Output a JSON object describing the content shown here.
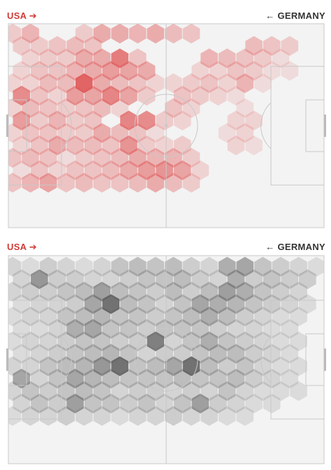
{
  "panels": [
    {
      "id": "usa-heatmap",
      "left_label": "USA",
      "left_arrow": "➔",
      "right_label": "GERMANY",
      "right_arrow": "←",
      "left_label_color": "#d03b36",
      "hex_base_color": "#e05555",
      "field_color": "#f3f3f3",
      "line_color": "#c8c8c8"
    },
    {
      "id": "germany-heatmap",
      "left_label": "USA",
      "left_arrow": "➔",
      "right_label": "GERMANY",
      "right_arrow": "←",
      "left_label_color": "#d03b36",
      "hex_base_color": "#5a5a5a",
      "field_color": "#f3f3f3",
      "line_color": "#c8c8c8"
    }
  ],
  "chart_data": [
    {
      "type": "heatmap",
      "grid": "hexagonal",
      "attacking_direction": "left-to-right",
      "cells": [
        [
          0.25,
          0.4,
          0,
          0,
          0.25,
          0.45,
          0.45,
          0.4,
          0.45,
          0.35,
          0.3,
          0,
          0,
          0,
          0,
          0,
          0,
          0,
          0,
          0,
          0,
          0,
          0,
          0,
          0,
          0,
          0,
          0,
          0,
          0,
          0,
          0,
          0,
          0,
          0,
          0,
          0,
          0,
          0,
          0
        ],
        [
          0.25,
          0.25,
          0.3,
          0.35,
          0.3,
          0,
          0,
          0,
          0,
          0,
          0,
          0,
          0,
          0.35,
          0.3,
          0.25,
          0,
          0,
          0,
          0,
          0.15,
          0,
          0,
          0,
          0,
          0,
          0,
          0,
          0,
          0,
          0,
          0,
          0,
          0,
          0,
          0,
          0,
          0,
          0,
          0
        ],
        [
          0,
          0.2,
          0.25,
          0.25,
          0.45,
          0.45,
          0.75,
          0.3,
          0,
          0,
          0,
          0.4,
          0.35,
          0.3,
          0.25,
          0.15,
          0,
          0,
          0,
          0,
          0,
          0,
          0,
          0,
          0,
          0,
          0,
          0,
          0,
          0,
          0,
          0,
          0,
          0,
          0,
          0,
          0,
          0,
          0,
          0
        ],
        [
          0.2,
          0.3,
          0.3,
          0.4,
          0.45,
          0.55,
          0.5,
          0.45,
          0,
          0,
          0.2,
          0.2,
          0.3,
          0.25,
          0.15,
          0.15,
          0,
          0,
          0,
          0,
          0,
          0,
          0,
          0,
          0,
          0,
          0,
          0,
          0,
          0,
          0,
          0,
          0,
          0,
          0,
          0,
          0,
          0,
          0,
          0
        ],
        [
          0.2,
          0.2,
          0.35,
          0.35,
          0.9,
          0.45,
          0.35,
          0.3,
          0.2,
          0.2,
          0.25,
          0.3,
          0.2,
          0.4,
          0.15,
          0,
          0,
          0,
          0,
          0,
          0,
          0,
          0,
          0,
          0,
          0,
          0,
          0,
          0,
          0,
          0,
          0,
          0,
          0,
          0,
          0,
          0,
          0,
          0,
          0
        ],
        [
          0.65,
          0.3,
          0.2,
          0.55,
          0.5,
          0.7,
          0.5,
          0.25,
          0,
          0.3,
          0.25,
          0.2,
          0.15,
          0,
          0,
          0,
          0,
          0,
          0,
          0,
          0,
          0,
          0,
          0,
          0,
          0,
          0,
          0,
          0,
          0,
          0,
          0,
          0,
          0,
          0,
          0,
          0,
          0,
          0,
          0
        ],
        [
          0.2,
          0.35,
          0.3,
          0.25,
          0.3,
          0.35,
          0.2,
          0,
          0,
          0.3,
          0.2,
          0,
          0,
          0.15,
          0,
          0,
          0,
          0,
          0,
          0,
          0,
          0,
          0,
          0,
          0,
          0,
          0,
          0,
          0,
          0,
          0,
          0,
          0,
          0,
          0,
          0,
          0,
          0,
          0,
          0
        ],
        [
          0.55,
          0.25,
          0.4,
          0.25,
          0.3,
          0,
          0.7,
          0.65,
          0.25,
          0.2,
          0,
          0,
          0.2,
          0.2,
          0,
          0,
          0,
          0,
          0,
          0,
          0,
          0,
          0,
          0,
          0,
          0,
          0,
          0,
          0,
          0,
          0,
          0,
          0,
          0,
          0,
          0,
          0,
          0,
          0,
          0
        ],
        [
          0.2,
          0.3,
          0.3,
          0.25,
          0.25,
          0.45,
          0.35,
          0.3,
          0.15,
          0,
          0,
          0,
          0.15,
          0.2,
          0,
          0,
          0,
          0,
          0,
          0,
          0,
          0,
          0,
          0,
          0,
          0,
          0,
          0,
          0,
          0,
          0,
          0,
          0,
          0,
          0,
          0,
          0,
          0,
          0,
          0
        ],
        [
          0.2,
          0.3,
          0.45,
          0.35,
          0.35,
          0.3,
          0.6,
          0.25,
          0.2,
          0.25,
          0,
          0,
          0.2,
          0.15,
          0,
          0,
          0,
          0,
          0,
          0,
          0,
          0,
          0,
          0,
          0,
          0,
          0,
          0,
          0,
          0,
          0,
          0,
          0,
          0,
          0,
          0,
          0,
          0,
          0,
          0
        ],
        [
          0.3,
          0.35,
          0.3,
          0.15,
          0.25,
          0.3,
          0.35,
          0.45,
          0.4,
          0.4,
          0.25,
          0,
          0,
          0,
          0,
          0,
          0,
          0,
          0,
          0,
          0,
          0,
          0,
          0,
          0,
          0,
          0,
          0,
          0,
          0,
          0,
          0,
          0,
          0,
          0,
          0,
          0,
          0,
          0,
          0
        ],
        [
          0.15,
          0.3,
          0.2,
          0.3,
          0.3,
          0.35,
          0.45,
          0.55,
          0.6,
          0.5,
          0.2,
          0,
          0,
          0,
          0,
          0,
          0,
          0,
          0,
          0,
          0,
          0,
          0,
          0,
          0,
          0,
          0,
          0,
          0,
          0,
          0,
          0,
          0,
          0,
          0,
          0,
          0,
          0,
          0,
          0
        ],
        [
          0.3,
          0.4,
          0.5,
          0.3,
          0.35,
          0.3,
          0.3,
          0.35,
          0.45,
          0.35,
          0.25,
          0,
          0,
          0,
          0,
          0,
          0,
          0,
          0,
          0,
          0,
          0,
          0,
          0,
          0,
          0,
          0,
          0,
          0,
          0,
          0,
          0,
          0,
          0,
          0,
          0,
          0,
          0,
          0,
          0
        ]
      ]
    },
    {
      "type": "heatmap",
      "grid": "hexagonal",
      "attacking_direction": "right-to-left",
      "cells": [
        [
          0.2,
          0.15,
          0.25,
          0.2,
          0.15,
          0.2,
          0.3,
          0.35,
          0.3,
          0.35,
          0.25,
          0.2,
          0.45,
          0.5,
          0.3,
          0.25,
          0.2,
          0.15,
          0.2,
          0,
          0,
          0,
          0,
          0,
          0,
          0,
          0,
          0,
          0,
          0,
          0,
          0,
          0,
          0,
          0,
          0,
          0,
          0,
          0,
          0
        ],
        [
          0.2,
          0.6,
          0.25,
          0.25,
          0.2,
          0.2,
          0.25,
          0.3,
          0.3,
          0.35,
          0.25,
          0.2,
          0.45,
          0.25,
          0.3,
          0.25,
          0.25,
          0,
          0,
          0,
          0,
          0,
          0,
          0,
          0,
          0,
          0,
          0,
          0,
          0,
          0,
          0,
          0,
          0,
          0,
          0,
          0,
          0,
          0,
          0
        ],
        [
          0.2,
          0.25,
          0.25,
          0.3,
          0.35,
          0.55,
          0.35,
          0.3,
          0.25,
          0.35,
          0.25,
          0.35,
          0.55,
          0.45,
          0.3,
          0.25,
          0.2,
          0,
          0,
          0,
          0,
          0,
          0,
          0,
          0,
          0,
          0,
          0,
          0,
          0,
          0,
          0,
          0,
          0,
          0,
          0,
          0,
          0,
          0,
          0
        ],
        [
          0.15,
          0.2,
          0.2,
          0.25,
          0.5,
          0.85,
          0.35,
          0.3,
          0.2,
          0.3,
          0.5,
          0.45,
          0.4,
          0.3,
          0.25,
          0.2,
          0.15,
          0,
          0,
          0,
          0,
          0,
          0,
          0,
          0,
          0,
          0,
          0,
          0,
          0,
          0,
          0,
          0,
          0,
          0,
          0,
          0,
          0,
          0,
          0
        ],
        [
          0.15,
          0.2,
          0.2,
          0.3,
          0.35,
          0.4,
          0.3,
          0.3,
          0.25,
          0.3,
          0.35,
          0.45,
          0.35,
          0.25,
          0.2,
          0.15,
          0.15,
          0,
          0,
          0,
          0,
          0,
          0,
          0,
          0,
          0,
          0,
          0,
          0,
          0,
          0,
          0,
          0,
          0,
          0,
          0,
          0,
          0,
          0,
          0
        ],
        [
          0.15,
          0.15,
          0.2,
          0.45,
          0.5,
          0.3,
          0.3,
          0.25,
          0.3,
          0.3,
          0.3,
          0.25,
          0.2,
          0.2,
          0.15,
          0.15,
          0,
          0,
          0,
          0,
          0,
          0,
          0,
          0,
          0,
          0,
          0,
          0,
          0,
          0,
          0,
          0,
          0,
          0,
          0,
          0,
          0,
          0,
          0,
          0
        ],
        [
          0.15,
          0.2,
          0.2,
          0.25,
          0.3,
          0.3,
          0.25,
          0.25,
          0.75,
          0.2,
          0.3,
          0.45,
          0.3,
          0.25,
          0.2,
          0.15,
          0.15,
          0,
          0,
          0,
          0,
          0,
          0,
          0,
          0,
          0,
          0,
          0,
          0,
          0,
          0,
          0,
          0,
          0,
          0,
          0,
          0,
          0,
          0,
          0
        ],
        [
          0.15,
          0.2,
          0.25,
          0.3,
          0.35,
          0.4,
          0.3,
          0.2,
          0.25,
          0.25,
          0.3,
          0.35,
          0.35,
          0.25,
          0.2,
          0.15,
          0,
          0,
          0,
          0,
          0,
          0,
          0,
          0,
          0,
          0,
          0,
          0,
          0,
          0,
          0,
          0,
          0,
          0,
          0,
          0,
          0,
          0,
          0,
          0
        ],
        [
          0.2,
          0.2,
          0.3,
          0.35,
          0.4,
          0.6,
          0.85,
          0.3,
          0.35,
          0.5,
          0.85,
          0.35,
          0.25,
          0.3,
          0.2,
          0.15,
          0.15,
          0,
          0,
          0,
          0,
          0,
          0,
          0,
          0,
          0,
          0,
          0,
          0,
          0,
          0,
          0,
          0,
          0,
          0,
          0,
          0,
          0,
          0,
          0
        ],
        [
          0.5,
          0.2,
          0.3,
          0.5,
          0.4,
          0.35,
          0.3,
          0.3,
          0.3,
          0.35,
          0.3,
          0.3,
          0.35,
          0.25,
          0.2,
          0.15,
          0,
          0,
          0,
          0,
          0,
          0,
          0,
          0,
          0,
          0,
          0,
          0,
          0,
          0,
          0,
          0,
          0,
          0,
          0,
          0,
          0,
          0,
          0,
          0
        ],
        [
          0.2,
          0.3,
          0.25,
          0.3,
          0.35,
          0.3,
          0.2,
          0.25,
          0.25,
          0.2,
          0.25,
          0.2,
          0.3,
          0.2,
          0.15,
          0.15,
          0.15,
          0,
          0,
          0,
          0,
          0,
          0,
          0,
          0,
          0,
          0,
          0,
          0,
          0,
          0,
          0,
          0,
          0,
          0,
          0,
          0,
          0,
          0,
          0
        ],
        [
          0.2,
          0.3,
          0.25,
          0.55,
          0.3,
          0.3,
          0.25,
          0.3,
          0.2,
          0.3,
          0.55,
          0.25,
          0.2,
          0.15,
          0.15,
          0,
          0,
          0,
          0,
          0,
          0,
          0,
          0,
          0,
          0,
          0,
          0,
          0,
          0,
          0,
          0,
          0,
          0,
          0,
          0,
          0,
          0,
          0,
          0,
          0
        ],
        [
          0.15,
          0.2,
          0.2,
          0.25,
          0.2,
          0.2,
          0.15,
          0.2,
          0.2,
          0.25,
          0.2,
          0.2,
          0.15,
          0.15,
          0,
          0,
          0,
          0,
          0,
          0,
          0,
          0,
          0,
          0,
          0,
          0,
          0,
          0,
          0,
          0,
          0,
          0,
          0,
          0,
          0,
          0,
          0,
          0,
          0,
          0
        ]
      ]
    }
  ]
}
